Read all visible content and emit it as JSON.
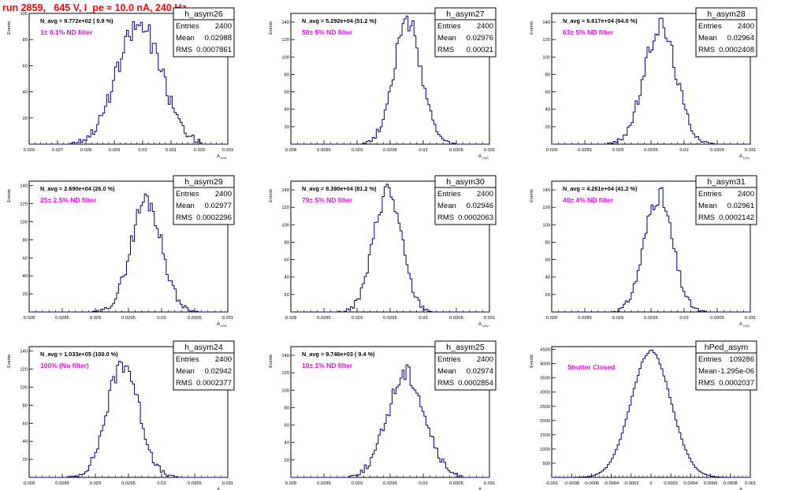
{
  "run_title": "run 2859,   645 V, I_pe ≈ 10.0 nA, 240 Hz",
  "common": {
    "ylabel": "Events",
    "xlabel": "A",
    "xlabel_sub": "LED"
  },
  "chart_data": [
    {
      "type": "histogram",
      "name": "h_asym26",
      "entries": "2400",
      "mean": "0.02988",
      "rms": "0.0007861",
      "navg": "N_avg = 9.772e+02 ( 0.9 %)",
      "filter": "1± 0.1% ND filter",
      "xlim": [
        0.026,
        0.033
      ],
      "ylim": [
        0,
        100
      ],
      "xticks": [
        "0.026",
        "0.027",
        "0.028",
        "0.029",
        "0.03",
        "0.031",
        "0.032",
        "0.033"
      ],
      "yticks": [
        "20",
        "40",
        "60",
        "80",
        "100"
      ],
      "mean_val": 0.02988,
      "sigma": 0.00078,
      "peak": 91,
      "seed": 26
    },
    {
      "type": "histogram",
      "name": "h_asym27",
      "entries": "2400",
      "mean": "0.02976",
      "rms": "0.00021",
      "navg": "N_avg = 5.292e+04 (51.2 %)",
      "filter": "50± 5% ND filter",
      "xlim": [
        0.028,
        0.031
      ],
      "ylim": [
        0,
        150
      ],
      "xticks": [
        "0.028",
        "0.0285",
        "0.029",
        "0.0295",
        "0.03",
        "0.0305",
        "0.031"
      ],
      "yticks": [
        "20",
        "40",
        "60",
        "80",
        "100",
        "120",
        "140"
      ],
      "mean_val": 0.02976,
      "sigma": 0.00021,
      "peak": 140,
      "seed": 27
    },
    {
      "type": "histogram",
      "name": "h_asym28",
      "entries": "2400",
      "mean": "0.02964",
      "rms": "0.0002408",
      "navg": "N_avg = 6.617e+04 (64.0 %)",
      "filter": "63± 5% ND filter",
      "xlim": [
        0.028,
        0.031
      ],
      "ylim": [
        0,
        150
      ],
      "xticks": [
        "0.028",
        "0.0285",
        "0.029",
        "0.0295",
        "0.03",
        "0.0305",
        "0.031"
      ],
      "yticks": [
        "20",
        "40",
        "60",
        "80",
        "100",
        "120",
        "140"
      ],
      "mean_val": 0.02964,
      "sigma": 0.00024,
      "peak": 136,
      "seed": 28
    },
    {
      "type": "histogram",
      "name": "h_asym29",
      "entries": "2400",
      "mean": "0.02977",
      "rms": "0.0002296",
      "navg": "N_avg = 2.690e+04 (26.0 %)",
      "filter": "25± 2.5% ND filter",
      "xlim": [
        0.028,
        0.031
      ],
      "ylim": [
        0,
        145
      ],
      "xticks": [
        "0.028",
        "0.0285",
        "0.029",
        "0.0295",
        "0.03",
        "0.0305",
        "0.031"
      ],
      "yticks": [
        "20",
        "40",
        "60",
        "80",
        "100",
        "120",
        "140"
      ],
      "mean_val": 0.02977,
      "sigma": 0.00023,
      "peak": 125,
      "seed": 29
    },
    {
      "type": "histogram",
      "name": "h_asym30",
      "entries": "2400",
      "mean": "0.02946",
      "rms": "0.0002063",
      "navg": "N_avg = 8.390e+04 (81.2 %)",
      "filter": "79± 5% ND filter",
      "xlim": [
        0.028,
        0.031
      ],
      "ylim": [
        0,
        150
      ],
      "xticks": [
        "0.028",
        "0.0285",
        "0.029",
        "0.0295",
        "0.03",
        "0.0305",
        "0.031"
      ],
      "yticks": [
        "20",
        "40",
        "60",
        "80",
        "100",
        "120",
        "140"
      ],
      "mean_val": 0.02946,
      "sigma": 0.00021,
      "peak": 140,
      "seed": 30
    },
    {
      "type": "histogram",
      "name": "h_asym31",
      "entries": "2400",
      "mean": "0.02961",
      "rms": "0.0002142",
      "navg": "N_avg = 4.261e+04 (41.2 %)",
      "filter": "40± 4% ND filter",
      "xlim": [
        0.028,
        0.031
      ],
      "ylim": [
        0,
        150
      ],
      "xticks": [
        "0.028",
        "0.0285",
        "0.029",
        "0.0295",
        "0.03",
        "0.0305",
        "0.031"
      ],
      "yticks": [
        "20",
        "40",
        "60",
        "80",
        "100",
        "120",
        "140"
      ],
      "mean_val": 0.02961,
      "sigma": 0.00021,
      "peak": 135,
      "seed": 31
    },
    {
      "type": "histogram",
      "name": "h_asym24",
      "entries": "2400",
      "mean": "0.02942",
      "rms": "0.0002377",
      "navg": "N_avg = 1.033e+05 (100.0 %)",
      "filter": "100% (No filter)",
      "xlim": [
        0.028,
        0.031
      ],
      "ylim": [
        0,
        145
      ],
      "xticks": [
        "0.028",
        "0.0285",
        "0.029",
        "0.0295",
        "0.03",
        "0.0305",
        "0.031"
      ],
      "yticks": [
        "20",
        "40",
        "60",
        "80",
        "100",
        "120",
        "140"
      ],
      "mean_val": 0.02942,
      "sigma": 0.00024,
      "peak": 128,
      "seed": 24
    },
    {
      "type": "histogram",
      "name": "h_asym25",
      "entries": "2400",
      "mean": "0.02974",
      "rms": "0.0002854",
      "navg": "N_avg = 9.746e+03 ( 9.4 %)",
      "filter": "10± 1% ND filter",
      "xlim": [
        0.028,
        0.031
      ],
      "ylim": [
        0,
        150
      ],
      "xticks": [
        "0.028",
        "0.0285",
        "0.029",
        "0.0295",
        "0.03",
        "0.0305",
        "0.031"
      ],
      "yticks": [
        "20",
        "40",
        "60",
        "80",
        "100",
        "120",
        "140"
      ],
      "mean_val": 0.02974,
      "sigma": 0.00028,
      "peak": 120,
      "seed": 25
    },
    {
      "type": "histogram",
      "name": "hPed_asym",
      "entries": "109286",
      "mean": "-1.295e-06",
      "rms": "0.0002037",
      "navg": "",
      "filter": "Shutter Closed",
      "xlim": [
        -0.001,
        0.001
      ],
      "ylim": [
        0,
        4600
      ],
      "xticks": [
        "-0.001",
        "-0.0008",
        "-0.0006",
        "-0.0004",
        "-0.0002",
        "0",
        "0.0002",
        "0.0004",
        "0.0006",
        "0.0008",
        "0.001"
      ],
      "yticks": [
        "500",
        "1000",
        "1500",
        "2000",
        "2500",
        "3000",
        "3500",
        "4000",
        "4500"
      ],
      "mean_val": 0.0,
      "sigma": 0.0002,
      "peak": 4450,
      "seed": 99
    }
  ]
}
